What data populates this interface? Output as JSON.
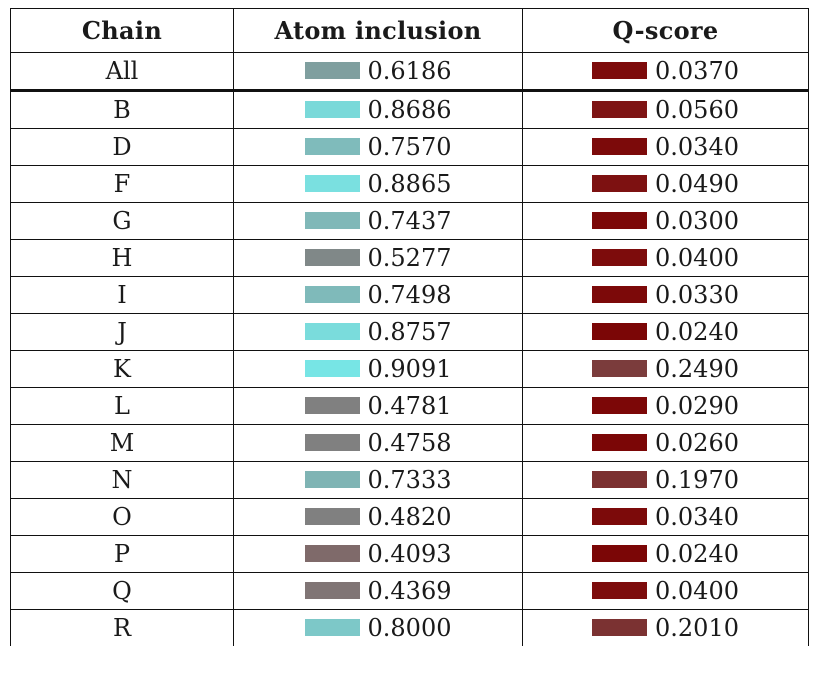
{
  "table": {
    "headers": {
      "chain": "Chain",
      "atom_inclusion": "Atom inclusion",
      "q_score": "Q-score"
    },
    "rows": [
      {
        "chain": "All",
        "atom_inclusion": "0.6186",
        "atom_color": "#7f9f9f",
        "q_score": "0.0370",
        "q_color": "#7d0b0b"
      },
      {
        "chain": "B",
        "atom_inclusion": "0.8686",
        "atom_color": "#7ad9d9",
        "q_score": "0.0560",
        "q_color": "#7e1414"
      },
      {
        "chain": "D",
        "atom_inclusion": "0.7570",
        "atom_color": "#7fbbbb",
        "q_score": "0.0340",
        "q_color": "#7c0a0a"
      },
      {
        "chain": "F",
        "atom_inclusion": "0.8865",
        "atom_color": "#7ae0e0",
        "q_score": "0.0490",
        "q_color": "#7d1111"
      },
      {
        "chain": "G",
        "atom_inclusion": "0.7437",
        "atom_color": "#80b8b8",
        "q_score": "0.0300",
        "q_color": "#7c0808"
      },
      {
        "chain": "H",
        "atom_inclusion": "0.5277",
        "atom_color": "#808888",
        "q_score": "0.0400",
        "q_color": "#7d0c0c"
      },
      {
        "chain": "I",
        "atom_inclusion": "0.7498",
        "atom_color": "#7fbaba",
        "q_score": "0.0330",
        "q_color": "#7c0909"
      },
      {
        "chain": "J",
        "atom_inclusion": "0.8757",
        "atom_color": "#7adcdc",
        "q_score": "0.0240",
        "q_color": "#7b0606"
      },
      {
        "chain": "K",
        "atom_inclusion": "0.9091",
        "atom_color": "#77e5e5",
        "q_score": "0.2490",
        "q_color": "#7b3c3c"
      },
      {
        "chain": "L",
        "atom_inclusion": "0.4781",
        "atom_color": "#808080",
        "q_score": "0.0290",
        "q_color": "#7c0707"
      },
      {
        "chain": "M",
        "atom_inclusion": "0.4758",
        "atom_color": "#808080",
        "q_score": "0.0260",
        "q_color": "#7b0606"
      },
      {
        "chain": "N",
        "atom_inclusion": "0.7333",
        "atom_color": "#7fb4b4",
        "q_score": "0.1970",
        "q_color": "#7b3030"
      },
      {
        "chain": "O",
        "atom_inclusion": "0.4820",
        "atom_color": "#808080",
        "q_score": "0.0340",
        "q_color": "#7c0a0a"
      },
      {
        "chain": "P",
        "atom_inclusion": "0.4093",
        "atom_color": "#7f6a6a",
        "q_score": "0.0240",
        "q_color": "#7b0606"
      },
      {
        "chain": "Q",
        "atom_inclusion": "0.4369",
        "atom_color": "#807575",
        "q_score": "0.0400",
        "q_color": "#7d0c0c"
      },
      {
        "chain": "R",
        "atom_inclusion": "0.8000",
        "atom_color": "#7dc8c8",
        "q_score": "0.2010",
        "q_color": "#7b3232"
      }
    ]
  }
}
